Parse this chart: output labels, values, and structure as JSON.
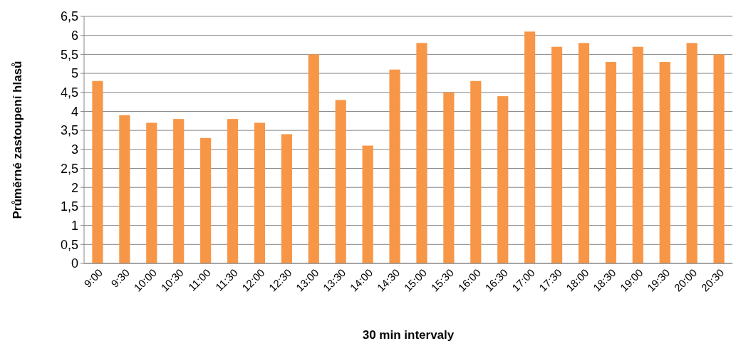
{
  "chart_data": {
    "type": "bar",
    "xlabel": "30 min intervaly",
    "ylabel": "Průměrné zastoupení hlasů",
    "categories": [
      "9:00",
      "9:30",
      "10:00",
      "10:30",
      "11:00",
      "11:30",
      "12:00",
      "12:30",
      "13:00",
      "13:30",
      "14:00",
      "14:30",
      "15:00",
      "15:30",
      "16:00",
      "16:30",
      "17:00",
      "17:30",
      "18:00",
      "18:30",
      "19:00",
      "19:30",
      "20:00",
      "20:30"
    ],
    "values": [
      4.8,
      3.9,
      3.7,
      3.8,
      3.3,
      3.8,
      3.7,
      3.4,
      5.5,
      4.3,
      3.1,
      5.1,
      5.8,
      4.5,
      4.8,
      4.4,
      6.1,
      5.7,
      5.8,
      5.3,
      5.7,
      5.3,
      5.8,
      5.5
    ],
    "color": "#f79646",
    "ylim": [
      0,
      6.5
    ],
    "yticks": [
      0,
      {
        "value": 0.5,
        "label": "0,5"
      },
      1,
      {
        "value": 1.5,
        "label": "1,5"
      },
      2,
      {
        "value": 2.5,
        "label": "2,5"
      },
      3,
      {
        "value": 3.5,
        "label": "3,5"
      },
      4,
      {
        "value": 4.5,
        "label": "4,5"
      },
      5,
      {
        "value": 5.5,
        "label": "5,5"
      },
      6,
      {
        "value": 6.5,
        "label": "6,5"
      }
    ],
    "grid": "y"
  }
}
